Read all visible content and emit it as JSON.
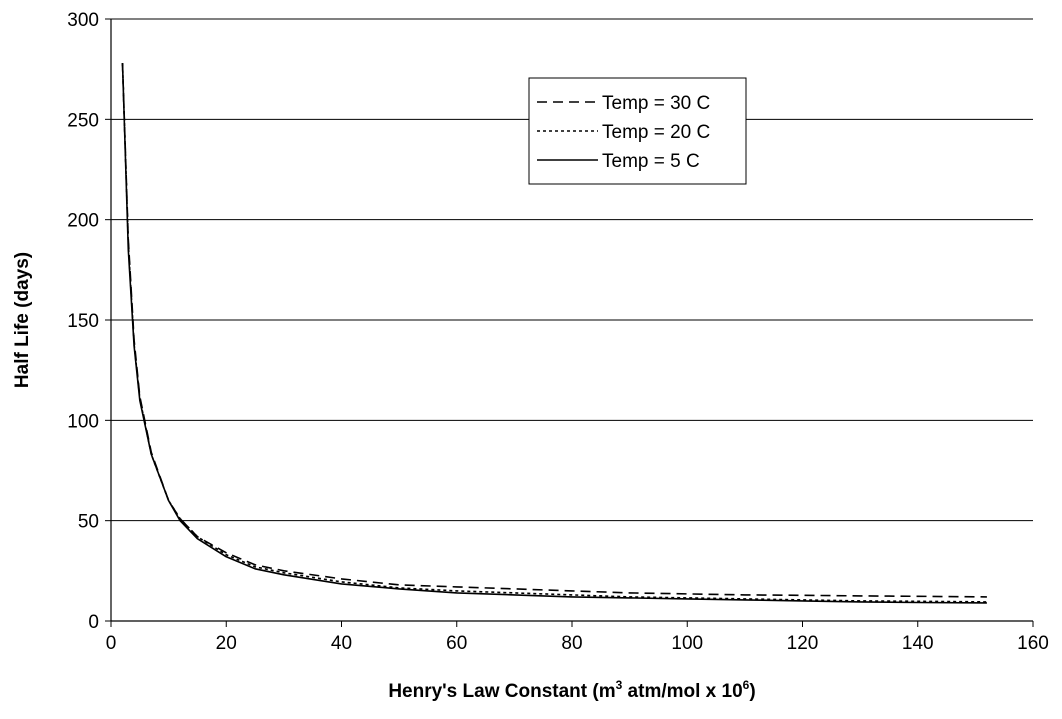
{
  "chart_data": {
    "type": "line",
    "xlabel": {
      "main": "Henry's Law Constant (m",
      "sup1": "3",
      "mid": " atm/mol x 10",
      "sup2": "6",
      "end": ")"
    },
    "ylabel": "Half Life (days)",
    "xlim": [
      0,
      160
    ],
    "ylim": [
      0,
      300
    ],
    "xticks": [
      "0",
      "20",
      "40",
      "60",
      "80",
      "100",
      "120",
      "140",
      "160"
    ],
    "yticks": [
      "0",
      "50",
      "100",
      "150",
      "200",
      "250",
      "300"
    ],
    "grid": "horizontal",
    "legend_position": "top-right",
    "series": [
      {
        "name": "Temp = 30 C",
        "dash": "dashed",
        "x": [
          2,
          3,
          4,
          5,
          7,
          10,
          12,
          15,
          20,
          25,
          30,
          40,
          50,
          60,
          70,
          80,
          90,
          100,
          110,
          120,
          130,
          140,
          152
        ],
        "y": [
          278,
          190,
          140,
          112,
          84,
          60,
          51,
          42,
          34,
          28,
          25,
          21,
          18,
          17,
          16,
          15,
          14,
          13.5,
          13,
          12.8,
          12.5,
          12.3,
          12
        ]
      },
      {
        "name": "Temp = 20 C",
        "dash": "dotted",
        "x": [
          2,
          3,
          4,
          5,
          7,
          10,
          12,
          15,
          20,
          25,
          30,
          40,
          50,
          60,
          70,
          80,
          90,
          100,
          110,
          120,
          130,
          140,
          152
        ],
        "y": [
          278,
          188,
          138,
          111,
          83,
          60,
          51,
          42,
          33,
          27,
          24,
          19.5,
          16.5,
          15,
          14,
          13,
          12,
          11.5,
          11,
          10.5,
          10,
          9.8,
          9.5
        ]
      },
      {
        "name": "Temp = 5 C",
        "dash": "solid",
        "x": [
          2,
          3,
          4,
          5,
          7,
          10,
          12,
          15,
          20,
          25,
          30,
          40,
          50,
          60,
          70,
          80,
          90,
          100,
          110,
          120,
          130,
          140,
          152
        ],
        "y": [
          278,
          185,
          137,
          110,
          83,
          60,
          50,
          41,
          32,
          26,
          23,
          18.5,
          16,
          14,
          13,
          12,
          11.5,
          11,
          10.5,
          10,
          9.5,
          9.2,
          9
        ]
      }
    ]
  }
}
